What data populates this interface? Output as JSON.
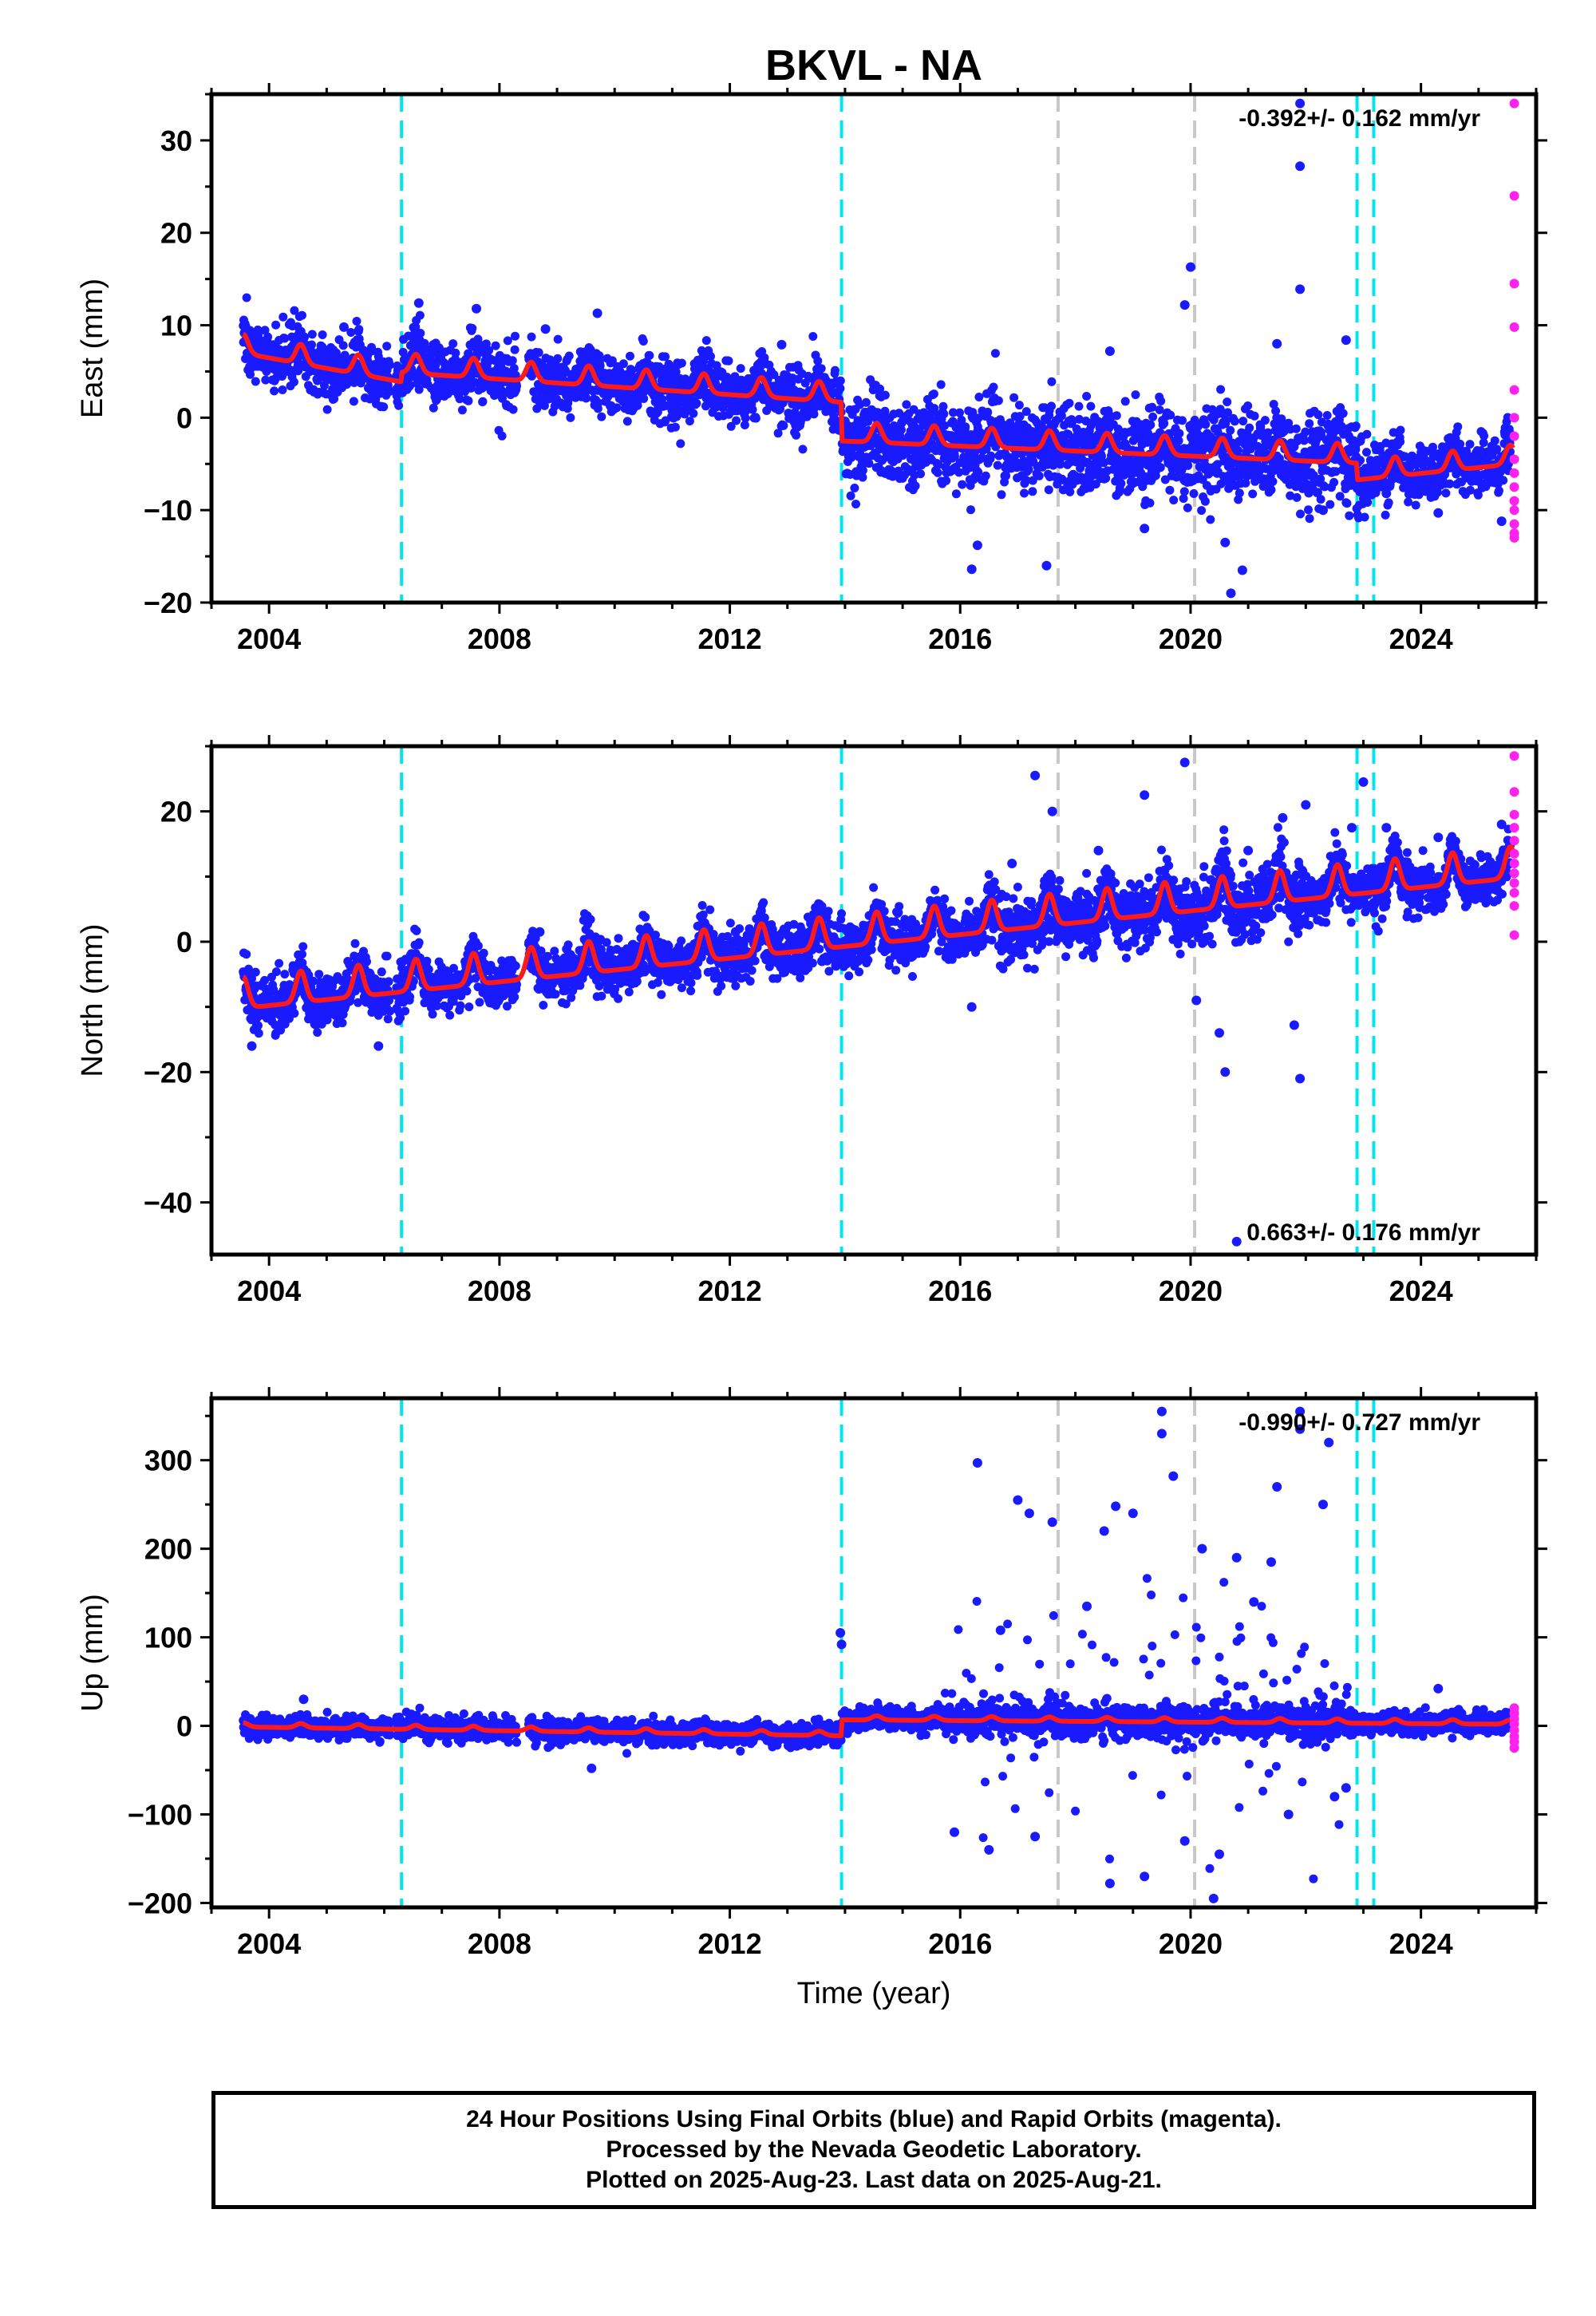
{
  "title": "BKVL - NA",
  "chart_data": [
    {
      "type": "scatter",
      "panel": "east",
      "title": "BKVL - NA",
      "ylabel": "East (mm)",
      "xlabel": "",
      "xlim": [
        2003.0,
        2026.0
      ],
      "ylim": [
        -20,
        35
      ],
      "xticks": [
        2004,
        2008,
        2012,
        2016,
        2020,
        2024
      ],
      "yticks": [
        -20,
        -10,
        0,
        10,
        20,
        30
      ],
      "rate_label": "-0.392+/- 0.162 mm/yr",
      "legend_position": "none",
      "grid": false,
      "trend_points": [
        [
          2003.55,
          7.5
        ],
        [
          2006.29,
          4.4
        ],
        [
          2006.31,
          5.4
        ],
        [
          2013.93,
          2.2
        ],
        [
          2013.95,
          -2.0
        ],
        [
          2022.88,
          -4.4
        ],
        [
          2022.9,
          -6.2
        ],
        [
          2025.6,
          -4.5
        ]
      ],
      "seasonal_amplitude": 1.3,
      "final_orbits_sample": [
        [
          2003.6,
          8.4
        ],
        [
          2004.5,
          5.1
        ],
        [
          2005.3,
          9.8
        ],
        [
          2006.6,
          12.4
        ],
        [
          2007.6,
          11.8
        ],
        [
          2008.8,
          9.6
        ],
        [
          2009.7,
          11.3
        ],
        [
          2011.0,
          5.3
        ],
        [
          2012.9,
          7.9
        ],
        [
          2013.4,
          1.2
        ],
        [
          2014.7,
          -6.0
        ],
        [
          2016.2,
          -16.4
        ],
        [
          2016.3,
          -13.8
        ],
        [
          2016.9,
          -3.0
        ],
        [
          2017.5,
          -16.0
        ],
        [
          2018.6,
          7.2
        ],
        [
          2019.2,
          -12.0
        ],
        [
          2019.9,
          12.2
        ],
        [
          2020.0,
          16.3
        ],
        [
          2020.6,
          -13.5
        ],
        [
          2020.9,
          -16.5
        ],
        [
          2020.7,
          -19.0
        ],
        [
          2021.5,
          8.0
        ],
        [
          2021.9,
          34.0
        ],
        [
          2021.9,
          27.2
        ],
        [
          2021.9,
          13.9
        ],
        [
          2022.3,
          -10.0
        ],
        [
          2022.7,
          8.4
        ],
        [
          2023.4,
          -8.2
        ],
        [
          2024.3,
          -10.3
        ],
        [
          2025.4,
          -11.2
        ]
      ],
      "rapid_orbits_values": [
        34.0,
        24.0,
        14.5,
        9.8,
        3.0,
        0.0,
        -2.0,
        -4.5,
        -6.0,
        -7.5,
        -9.0,
        -10.0,
        -11.5,
        -12.5,
        -13.0
      ],
      "event_lines": [
        {
          "x": 2006.3,
          "kind": "equipment",
          "color": "#00e5ee"
        },
        {
          "x": 2013.94,
          "kind": "equipment",
          "color": "#00e5ee"
        },
        {
          "x": 2017.7,
          "kind": "earthquake",
          "color": "#c8c8c8"
        },
        {
          "x": 2020.07,
          "kind": "earthquake",
          "color": "#c8c8c8"
        },
        {
          "x": 2022.89,
          "kind": "equipment",
          "color": "#00e5ee"
        },
        {
          "x": 2023.18,
          "kind": "equipment",
          "color": "#00e5ee"
        }
      ]
    },
    {
      "type": "scatter",
      "panel": "north",
      "ylabel": "North (mm)",
      "xlabel": "",
      "xlim": [
        2003.0,
        2026.0
      ],
      "ylim": [
        -48,
        30
      ],
      "xticks": [
        2004,
        2008,
        2012,
        2016,
        2020,
        2024
      ],
      "yticks": [
        -40,
        -20,
        0,
        20
      ],
      "rate_label": "0.663+/- 0.176 mm/yr",
      "legend_position": "none",
      "grid": false,
      "trend_points": [
        [
          2003.55,
          -9.0
        ],
        [
          2025.6,
          11.0
        ]
      ],
      "seasonal_amplitude": 3.0,
      "final_orbits_sample": [
        [
          2003.7,
          -16.0
        ],
        [
          2005.9,
          -16.0
        ],
        [
          2008.7,
          1.5
        ],
        [
          2012.1,
          1.5
        ],
        [
          2013.6,
          -3.0
        ],
        [
          2016.2,
          -10.0
        ],
        [
          2016.9,
          12.0
        ],
        [
          2017.3,
          25.5
        ],
        [
          2017.6,
          20.0
        ],
        [
          2018.4,
          14.0
        ],
        [
          2019.2,
          22.5
        ],
        [
          2019.9,
          27.5
        ],
        [
          2020.1,
          -9.0
        ],
        [
          2020.5,
          -14.0
        ],
        [
          2020.6,
          -20.0
        ],
        [
          2020.8,
          -46.0
        ],
        [
          2021.0,
          14.0
        ],
        [
          2021.6,
          19.0
        ],
        [
          2022.0,
          21.0
        ],
        [
          2022.8,
          17.5
        ],
        [
          2023.0,
          24.5
        ],
        [
          2021.8,
          -12.8
        ],
        [
          2021.9,
          -21.0
        ],
        [
          2023.4,
          17.5
        ],
        [
          2024.3,
          16.0
        ],
        [
          2025.4,
          18.0
        ]
      ],
      "rapid_orbits_values": [
        28.5,
        23.0,
        19.5,
        17.5,
        15.5,
        13.5,
        12.0,
        10.5,
        9.0,
        7.5,
        5.5,
        1.0
      ],
      "event_lines": [
        {
          "x": 2006.3,
          "kind": "equipment",
          "color": "#00e5ee"
        },
        {
          "x": 2013.94,
          "kind": "equipment",
          "color": "#00e5ee"
        },
        {
          "x": 2017.7,
          "kind": "earthquake",
          "color": "#c8c8c8"
        },
        {
          "x": 2020.07,
          "kind": "earthquake",
          "color": "#c8c8c8"
        },
        {
          "x": 2022.89,
          "kind": "equipment",
          "color": "#00e5ee"
        },
        {
          "x": 2023.18,
          "kind": "equipment",
          "color": "#00e5ee"
        }
      ]
    },
    {
      "type": "scatter",
      "panel": "up",
      "ylabel": "Up (mm)",
      "xlabel": "Time (year)",
      "xlim": [
        2003.0,
        2026.0
      ],
      "ylim": [
        -205,
        370
      ],
      "xticks": [
        2004,
        2008,
        2012,
        2016,
        2020,
        2024
      ],
      "yticks": [
        -200,
        -100,
        0,
        100,
        200,
        300
      ],
      "rate_label": "-0.990+/- 0.727 mm/yr",
      "legend_position": "none",
      "grid": false,
      "trend_points": [
        [
          2003.55,
          0.0
        ],
        [
          2013.93,
          -10.0
        ],
        [
          2013.95,
          8.0
        ],
        [
          2025.6,
          3.0
        ]
      ],
      "seasonal_amplitude": 3.0,
      "final_orbits_sample": [
        [
          2004.6,
          30.0
        ],
        [
          2009.6,
          -48.0
        ],
        [
          2013.92,
          105.0
        ],
        [
          2013.94,
          92.0
        ],
        [
          2015.9,
          -120.0
        ],
        [
          2016.3,
          297.0
        ],
        [
          2016.5,
          -140.0
        ],
        [
          2016.7,
          108.0
        ],
        [
          2017.0,
          255.0
        ],
        [
          2017.2,
          240.0
        ],
        [
          2017.3,
          -125.0
        ],
        [
          2017.6,
          230.0
        ],
        [
          2018.2,
          135.0
        ],
        [
          2018.5,
          220.0
        ],
        [
          2018.6,
          -178.0
        ],
        [
          2018.7,
          248.0
        ],
        [
          2019.0,
          240.0
        ],
        [
          2019.2,
          -170.0
        ],
        [
          2019.5,
          355.0
        ],
        [
          2019.5,
          330.0
        ],
        [
          2019.7,
          282.0
        ],
        [
          2019.9,
          -130.0
        ],
        [
          2020.2,
          200.0
        ],
        [
          2020.4,
          -195.0
        ],
        [
          2020.5,
          -145.0
        ],
        [
          2020.8,
          190.0
        ],
        [
          2021.1,
          140.0
        ],
        [
          2021.4,
          185.0
        ],
        [
          2021.5,
          270.0
        ],
        [
          2021.7,
          -100.0
        ],
        [
          2021.9,
          355.0
        ],
        [
          2021.9,
          335.0
        ],
        [
          2022.3,
          250.0
        ],
        [
          2022.4,
          320.0
        ],
        [
          2022.5,
          -80.0
        ],
        [
          2022.7,
          -70.0
        ],
        [
          2024.3,
          42.0
        ]
      ],
      "rapid_orbits_values": [
        20.0,
        14.0,
        8.0,
        2.0,
        -5.0,
        -12.0,
        -18.0,
        -25.0
      ],
      "event_lines": [
        {
          "x": 2006.3,
          "kind": "equipment",
          "color": "#00e5ee"
        },
        {
          "x": 2013.94,
          "kind": "equipment",
          "color": "#00e5ee"
        },
        {
          "x": 2017.7,
          "kind": "earthquake",
          "color": "#c8c8c8"
        },
        {
          "x": 2020.07,
          "kind": "earthquake",
          "color": "#c8c8c8"
        },
        {
          "x": 2022.89,
          "kind": "equipment",
          "color": "#00e5ee"
        },
        {
          "x": 2023.18,
          "kind": "equipment",
          "color": "#00e5ee"
        }
      ]
    }
  ],
  "colors": {
    "final_orbits": "#1a1aff",
    "rapid_orbits": "#ff22ee",
    "trend": "#ff1a1a",
    "equipment_line": "#00e5ee",
    "earthquake_line": "#c8c8c8"
  },
  "footer": {
    "line1": "24 Hour Positions Using Final Orbits (blue) and Rapid Orbits (magenta).",
    "line2": "Processed by the Nevada Geodetic Laboratory.",
    "line3": "Plotted on 2025-Aug-23. Last data on 2025-Aug-21."
  }
}
